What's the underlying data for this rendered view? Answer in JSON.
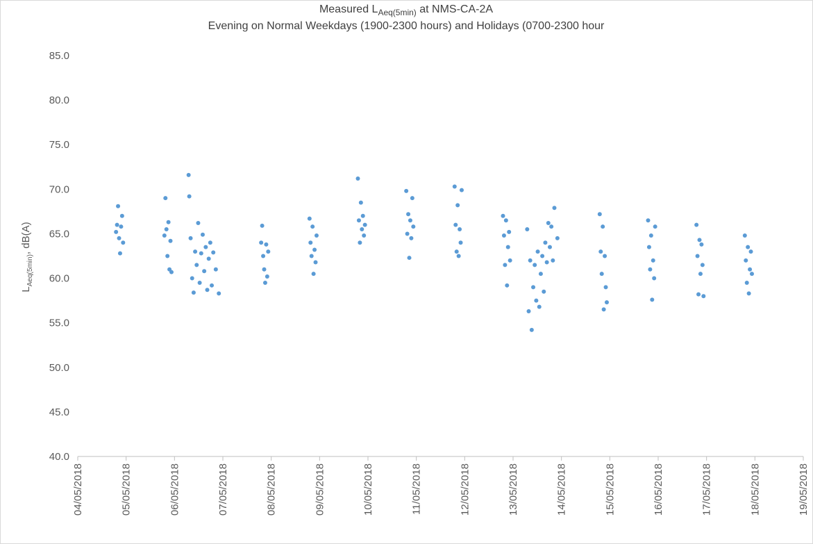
{
  "chart_data": {
    "type": "scatter",
    "title": {
      "text": "Measured L",
      "subscript": "Aeq(5min)",
      "suffix": " at NMS-CA-2A"
    },
    "subtitle": "Evening on Normal  Weekdays (1900-2300 hours) and Holidays (0700-2300 hour",
    "y_label": {
      "text": "L",
      "subscript": "Aeq(5min)",
      "suffix": ", dB(A)"
    },
    "color": "#5b9bd5",
    "grid": false,
    "ylim": [
      40,
      85
    ],
    "yticks": [
      {
        "value": 40,
        "label": "40.0"
      },
      {
        "value": 45,
        "label": "45.0"
      },
      {
        "value": 50,
        "label": "50.0"
      },
      {
        "value": 55,
        "label": "55.0"
      },
      {
        "value": 60,
        "label": "60.0"
      },
      {
        "value": 65,
        "label": "65.0"
      },
      {
        "value": 70,
        "label": "70.0"
      },
      {
        "value": 75,
        "label": "75.0"
      },
      {
        "value": 80,
        "label": "80.0"
      },
      {
        "value": 85,
        "label": "85.0"
      }
    ],
    "xlim": [
      "2018-05-04T00:00",
      "2018-05-19T00:00"
    ],
    "xticks": [
      {
        "value": "2018-05-04T00:00",
        "label": "04/05/2018"
      },
      {
        "value": "2018-05-05T00:00",
        "label": "05/05/2018"
      },
      {
        "value": "2018-05-06T00:00",
        "label": "06/05/2018"
      },
      {
        "value": "2018-05-07T00:00",
        "label": "07/05/2018"
      },
      {
        "value": "2018-05-08T00:00",
        "label": "08/05/2018"
      },
      {
        "value": "2018-05-09T00:00",
        "label": "09/05/2018"
      },
      {
        "value": "2018-05-10T00:00",
        "label": "10/05/2018"
      },
      {
        "value": "2018-05-11T00:00",
        "label": "11/05/2018"
      },
      {
        "value": "2018-05-12T00:00",
        "label": "12/05/2018"
      },
      {
        "value": "2018-05-13T00:00",
        "label": "13/05/2018"
      },
      {
        "value": "2018-05-14T00:00",
        "label": "14/05/2018"
      },
      {
        "value": "2018-05-15T00:00",
        "label": "15/05/2018"
      },
      {
        "value": "2018-05-16T00:00",
        "label": "16/05/2018"
      },
      {
        "value": "2018-05-17T00:00",
        "label": "17/05/2018"
      },
      {
        "value": "2018-05-18T00:00",
        "label": "18/05/2018"
      },
      {
        "value": "2018-05-19T00:00",
        "label": "19/05/2018"
      }
    ],
    "x": [
      "2018-05-04T19:00",
      "2018-05-04T19:30",
      "2018-05-04T20:00",
      "2018-05-04T20:30",
      "2018-05-04T21:00",
      "2018-05-04T21:30",
      "2018-05-04T22:00",
      "2018-05-04T22:30",
      "2018-05-05T19:00",
      "2018-05-05T19:30",
      "2018-05-05T20:00",
      "2018-05-05T20:30",
      "2018-05-05T21:00",
      "2018-05-05T21:30",
      "2018-05-05T22:00",
      "2018-05-05T22:30",
      "2018-05-06T07:00",
      "2018-05-06T07:20",
      "2018-05-06T08:00",
      "2018-05-06T08:45",
      "2018-05-06T09:30",
      "2018-05-06T10:15",
      "2018-05-06T11:00",
      "2018-05-06T11:45",
      "2018-05-06T12:30",
      "2018-05-06T13:15",
      "2018-05-06T14:00",
      "2018-05-06T14:45",
      "2018-05-06T15:30",
      "2018-05-06T16:15",
      "2018-05-06T17:00",
      "2018-05-06T17:45",
      "2018-05-06T18:30",
      "2018-05-06T19:15",
      "2018-05-06T20:30",
      "2018-05-06T22:00",
      "2018-05-07T19:00",
      "2018-05-07T19:30",
      "2018-05-07T20:00",
      "2018-05-07T20:30",
      "2018-05-07T21:00",
      "2018-05-07T21:30",
      "2018-05-07T22:00",
      "2018-05-07T22:30",
      "2018-05-08T19:00",
      "2018-05-08T19:30",
      "2018-05-08T20:00",
      "2018-05-08T20:30",
      "2018-05-08T21:00",
      "2018-05-08T21:30",
      "2018-05-08T22:00",
      "2018-05-08T22:30",
      "2018-05-09T19:00",
      "2018-05-09T19:30",
      "2018-05-09T20:00",
      "2018-05-09T20:30",
      "2018-05-09T21:00",
      "2018-05-09T21:30",
      "2018-05-09T22:00",
      "2018-05-09T22:30",
      "2018-05-10T19:00",
      "2018-05-10T19:30",
      "2018-05-10T20:00",
      "2018-05-10T20:30",
      "2018-05-10T21:00",
      "2018-05-10T21:30",
      "2018-05-10T22:00",
      "2018-05-10T22:30",
      "2018-05-11T19:00",
      "2018-05-11T19:30",
      "2018-05-11T20:00",
      "2018-05-11T20:30",
      "2018-05-11T21:00",
      "2018-05-11T21:30",
      "2018-05-11T22:00",
      "2018-05-11T22:30",
      "2018-05-12T19:00",
      "2018-05-12T19:30",
      "2018-05-12T20:00",
      "2018-05-12T20:30",
      "2018-05-12T21:00",
      "2018-05-12T21:30",
      "2018-05-12T22:00",
      "2018-05-12T22:30",
      "2018-05-13T07:00",
      "2018-05-13T07:45",
      "2018-05-13T08:30",
      "2018-05-13T09:15",
      "2018-05-13T10:00",
      "2018-05-13T10:45",
      "2018-05-13T11:30",
      "2018-05-13T12:15",
      "2018-05-13T13:00",
      "2018-05-13T13:45",
      "2018-05-13T14:30",
      "2018-05-13T15:15",
      "2018-05-13T16:00",
      "2018-05-13T16:45",
      "2018-05-13T17:30",
      "2018-05-13T18:15",
      "2018-05-13T19:00",
      "2018-05-13T19:45",
      "2018-05-13T20:30",
      "2018-05-13T22:00",
      "2018-05-14T19:00",
      "2018-05-14T19:30",
      "2018-05-14T20:00",
      "2018-05-14T20:30",
      "2018-05-14T21:00",
      "2018-05-14T21:30",
      "2018-05-14T22:00",
      "2018-05-14T22:30",
      "2018-05-15T19:00",
      "2018-05-15T19:30",
      "2018-05-15T20:00",
      "2018-05-15T20:30",
      "2018-05-15T21:00",
      "2018-05-15T21:30",
      "2018-05-15T22:00",
      "2018-05-15T22:30",
      "2018-05-16T19:00",
      "2018-05-16T19:30",
      "2018-05-16T20:00",
      "2018-05-16T20:30",
      "2018-05-16T21:00",
      "2018-05-16T21:30",
      "2018-05-16T22:00",
      "2018-05-16T22:30",
      "2018-05-17T19:00",
      "2018-05-17T19:30",
      "2018-05-17T20:00",
      "2018-05-17T20:30",
      "2018-05-17T21:00",
      "2018-05-17T21:30",
      "2018-05-17T22:00",
      "2018-05-17T22:30"
    ],
    "values": [
      65.2,
      66.0,
      68.1,
      64.5,
      62.8,
      65.8,
      67.0,
      64.0,
      64.8,
      69.0,
      65.5,
      62.5,
      66.3,
      61.0,
      64.2,
      60.7,
      71.6,
      69.2,
      64.5,
      60.0,
      58.4,
      63.0,
      61.5,
      66.2,
      59.5,
      62.8,
      64.9,
      60.8,
      63.5,
      58.7,
      62.2,
      64.0,
      59.2,
      62.9,
      61.0,
      58.3,
      64.0,
      65.9,
      62.5,
      61.0,
      59.5,
      63.8,
      60.2,
      63.0,
      66.7,
      64.0,
      62.5,
      65.8,
      60.5,
      63.2,
      61.8,
      64.8,
      71.2,
      66.5,
      64.0,
      68.5,
      65.5,
      67.0,
      64.8,
      66.0,
      69.8,
      65.0,
      67.2,
      62.3,
      66.5,
      64.5,
      69.0,
      65.8,
      70.3,
      66.0,
      63.0,
      68.2,
      62.5,
      65.5,
      64.0,
      69.9,
      67.0,
      64.8,
      61.5,
      66.5,
      59.2,
      63.5,
      65.2,
      62.0,
      65.5,
      56.3,
      62.0,
      54.2,
      59.0,
      61.5,
      57.5,
      63.0,
      56.8,
      60.5,
      62.5,
      58.5,
      64.0,
      61.8,
      66.2,
      63.5,
      65.8,
      62.0,
      67.9,
      64.5,
      67.2,
      63.0,
      60.5,
      65.8,
      56.5,
      62.5,
      59.0,
      57.3,
      66.5,
      63.5,
      61.0,
      64.8,
      57.6,
      62.0,
      60.0,
      65.8,
      66.0,
      62.5,
      58.2,
      64.3,
      60.5,
      63.8,
      61.5,
      58.0,
      64.8,
      62.0,
      59.5,
      63.5,
      58.3,
      61.0,
      63.0,
      60.5
    ]
  }
}
